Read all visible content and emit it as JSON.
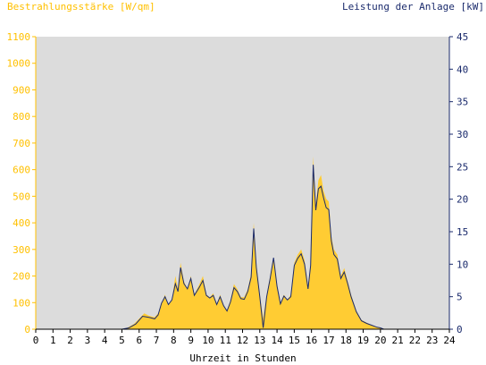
{
  "chart_data": {
    "type": "area",
    "y_left_label": "Bestrahlungsstärke [W/qm]",
    "y_right_label": "Leistung der Anlage [kW]",
    "xlabel": "Uhrzeit in Stunden",
    "x_ticks": [
      "0",
      "1",
      "2",
      "3",
      "4",
      "5",
      "6",
      "7",
      "8",
      "9",
      "10",
      "11",
      "12",
      "13",
      "14",
      "15",
      "16",
      "17",
      "18",
      "19",
      "20",
      "21",
      "22",
      "23",
      "24"
    ],
    "y_left_ticks": [
      "0",
      "100",
      "200",
      "300",
      "400",
      "500",
      "600",
      "700",
      "800",
      "900",
      "1000",
      "1100"
    ],
    "y_right_ticks": [
      "0",
      "5",
      "10",
      "15",
      "20",
      "25",
      "30",
      "35",
      "40",
      "45"
    ],
    "xlim": [
      0,
      24
    ],
    "y_left_lim": [
      0,
      1100
    ],
    "y_right_lim": [
      0,
      45
    ],
    "colors": {
      "irradiance": "#ffcc33",
      "power": "#1a2a6c",
      "plot_bg": "#dcdcdc",
      "left_axis": "#ffc000",
      "right_axis": "#1a2a6c"
    },
    "series": [
      {
        "name": "Bestrahlungsstärke",
        "axis": "left",
        "points": [
          [
            0,
            0
          ],
          [
            5,
            0
          ],
          [
            5.3,
            5
          ],
          [
            5.7,
            20
          ],
          [
            6,
            40
          ],
          [
            6.3,
            60
          ],
          [
            6.6,
            50
          ],
          [
            6.9,
            45
          ],
          [
            7.1,
            60
          ],
          [
            7.3,
            95
          ],
          [
            7.5,
            130
          ],
          [
            7.7,
            90
          ],
          [
            7.9,
            110
          ],
          [
            8.1,
            200
          ],
          [
            8.25,
            150
          ],
          [
            8.4,
            250
          ],
          [
            8.6,
            180
          ],
          [
            8.8,
            150
          ],
          [
            9.0,
            200
          ],
          [
            9.2,
            130
          ],
          [
            9.5,
            170
          ],
          [
            9.7,
            200
          ],
          [
            9.9,
            130
          ],
          [
            10.1,
            120
          ],
          [
            10.3,
            135
          ],
          [
            10.5,
            95
          ],
          [
            10.7,
            130
          ],
          [
            10.9,
            90
          ],
          [
            11.1,
            70
          ],
          [
            11.3,
            110
          ],
          [
            11.5,
            170
          ],
          [
            11.7,
            150
          ],
          [
            11.9,
            120
          ],
          [
            12.1,
            120
          ],
          [
            12.3,
            150
          ],
          [
            12.5,
            210
          ],
          [
            12.65,
            400
          ],
          [
            12.8,
            250
          ],
          [
            13.0,
            130
          ],
          [
            13.2,
            40
          ],
          [
            13.4,
            130
          ],
          [
            13.6,
            200
          ],
          [
            13.8,
            270
          ],
          [
            14.0,
            170
          ],
          [
            14.2,
            100
          ],
          [
            14.4,
            130
          ],
          [
            14.6,
            110
          ],
          [
            14.8,
            130
          ],
          [
            15.0,
            250
          ],
          [
            15.2,
            280
          ],
          [
            15.4,
            300
          ],
          [
            15.6,
            260
          ],
          [
            15.8,
            160
          ],
          [
            15.95,
            250
          ],
          [
            16.1,
            650
          ],
          [
            16.25,
            470
          ],
          [
            16.4,
            560
          ],
          [
            16.55,
            580
          ],
          [
            16.7,
            520
          ],
          [
            16.85,
            490
          ],
          [
            17.0,
            480
          ],
          [
            17.15,
            350
          ],
          [
            17.3,
            300
          ],
          [
            17.5,
            280
          ],
          [
            17.7,
            200
          ],
          [
            17.9,
            230
          ],
          [
            18.1,
            180
          ],
          [
            18.3,
            130
          ],
          [
            18.6,
            70
          ],
          [
            18.9,
            35
          ],
          [
            19.2,
            25
          ],
          [
            19.5,
            15
          ],
          [
            19.8,
            8
          ],
          [
            20.0,
            5
          ],
          [
            20.2,
            0
          ],
          [
            24,
            0
          ]
        ]
      },
      {
        "name": "Leistung",
        "axis": "right",
        "points": [
          [
            0,
            0
          ],
          [
            5,
            0
          ],
          [
            5.4,
            0.2
          ],
          [
            5.8,
            0.8
          ],
          [
            6.2,
            2
          ],
          [
            6.6,
            1.8
          ],
          [
            6.9,
            1.6
          ],
          [
            7.1,
            2.2
          ],
          [
            7.3,
            4
          ],
          [
            7.5,
            5
          ],
          [
            7.7,
            3.8
          ],
          [
            7.9,
            4.5
          ],
          [
            8.1,
            7
          ],
          [
            8.25,
            5.8
          ],
          [
            8.4,
            9.5
          ],
          [
            8.6,
            7
          ],
          [
            8.8,
            6.2
          ],
          [
            9.0,
            7.8
          ],
          [
            9.2,
            5.2
          ],
          [
            9.5,
            6.5
          ],
          [
            9.7,
            7.5
          ],
          [
            9.9,
            5.2
          ],
          [
            10.1,
            4.8
          ],
          [
            10.3,
            5.2
          ],
          [
            10.5,
            3.8
          ],
          [
            10.7,
            5.0
          ],
          [
            10.9,
            3.6
          ],
          [
            11.1,
            2.8
          ],
          [
            11.3,
            4.2
          ],
          [
            11.5,
            6.4
          ],
          [
            11.7,
            5.8
          ],
          [
            11.9,
            4.7
          ],
          [
            12.1,
            4.6
          ],
          [
            12.3,
            5.8
          ],
          [
            12.5,
            8
          ],
          [
            12.65,
            15.5
          ],
          [
            12.8,
            9.5
          ],
          [
            13.0,
            5.0
          ],
          [
            13.2,
            0.2
          ],
          [
            13.4,
            5.0
          ],
          [
            13.6,
            7.8
          ],
          [
            13.8,
            11
          ],
          [
            14.0,
            6.6
          ],
          [
            14.2,
            3.9
          ],
          [
            14.4,
            5.1
          ],
          [
            14.6,
            4.5
          ],
          [
            14.8,
            5.0
          ],
          [
            15.0,
            9.8
          ],
          [
            15.2,
            10.9
          ],
          [
            15.4,
            11.6
          ],
          [
            15.6,
            10
          ],
          [
            15.8,
            6.2
          ],
          [
            15.95,
            9.8
          ],
          [
            16.1,
            25.3
          ],
          [
            16.25,
            18.3
          ],
          [
            16.4,
            21.6
          ],
          [
            16.55,
            22
          ],
          [
            16.7,
            20.2
          ],
          [
            16.85,
            18.7
          ],
          [
            17.0,
            18.4
          ],
          [
            17.15,
            13.6
          ],
          [
            17.3,
            11.5
          ],
          [
            17.5,
            10.8
          ],
          [
            17.7,
            7.8
          ],
          [
            17.9,
            8.8
          ],
          [
            18.1,
            7
          ],
          [
            18.3,
            5
          ],
          [
            18.6,
            2.7
          ],
          [
            18.9,
            1.3
          ],
          [
            19.2,
            0.9
          ],
          [
            19.5,
            0.6
          ],
          [
            19.8,
            0.3
          ],
          [
            20.0,
            0.2
          ],
          [
            20.2,
            0
          ],
          [
            24,
            0
          ]
        ]
      }
    ]
  }
}
